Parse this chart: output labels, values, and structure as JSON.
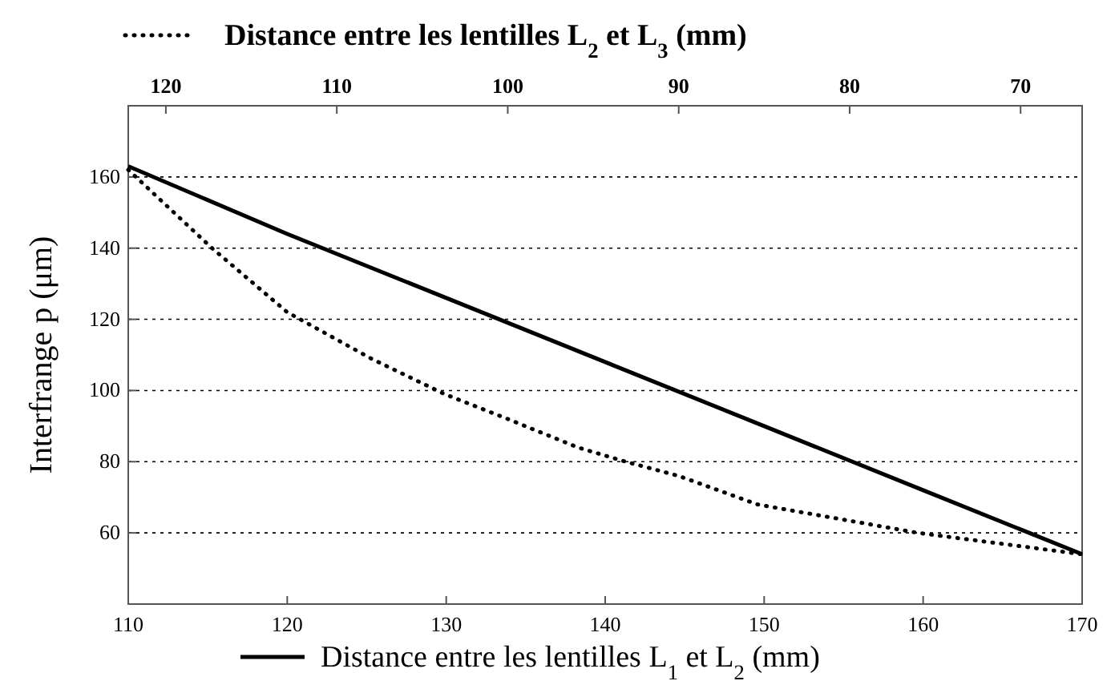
{
  "chart_data": {
    "type": "line",
    "xlabel": "Distance entre les lentilles L$_{1}$ et L$_{2}$ (mm)",
    "x2label": "Distance entre les lentilles L$_{2}$ et L$_{3}$ (mm)",
    "ylabel": "Interfrange p (μm)",
    "xlim": [
      110,
      170
    ],
    "xticks": [
      110,
      120,
      130,
      140,
      150,
      160,
      170
    ],
    "x2lim": [
      122.2,
      66.4
    ],
    "x2ticks": [
      120,
      110,
      100,
      90,
      80,
      70
    ],
    "ylim": [
      40,
      180
    ],
    "yticks": [
      60,
      80,
      100,
      120,
      140,
      160
    ],
    "grid": "y",
    "series": [
      {
        "color": "#000000",
        "line_style": "solid",
        "x": [
          110,
          120,
          130,
          140,
          150,
          160,
          170
        ],
        "values": [
          163,
          144,
          126,
          108,
          90,
          72,
          54
        ]
      },
      {
        "color": "#000000",
        "line_style": "dotted",
        "axis": "x2",
        "x": [
          122.2,
          117.3,
          112.9,
          108,
          103.7,
          100,
          95.9,
          93.1,
          90,
          85.4,
          76,
          66.4
        ],
        "values": [
          162,
          140,
          122,
          109,
          99,
          92,
          84,
          80,
          76,
          68,
          60,
          54
        ]
      }
    ]
  }
}
